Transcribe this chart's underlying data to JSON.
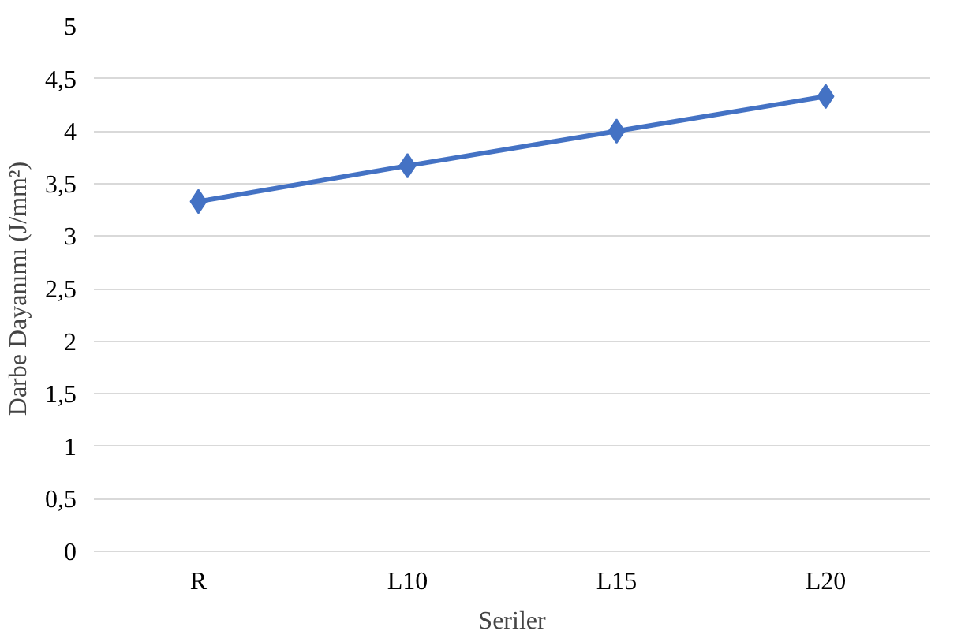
{
  "chart_data": {
    "type": "line",
    "xlabel": "Seriler",
    "ylabel": "Darbe Dayanımı (J/mm²)",
    "categories": [
      "R",
      "L10",
      "L15",
      "L20"
    ],
    "series": [
      {
        "color": "#4472c4",
        "values": [
          3.33,
          3.67,
          4.0,
          4.33
        ]
      }
    ],
    "ylim": [
      0,
      5
    ],
    "yticks": [
      0,
      {
        "value": 0.5,
        "label": "0,5"
      },
      1,
      {
        "value": 1.5,
        "label": "1,5"
      },
      2,
      {
        "value": 2.5,
        "label": "2,5"
      },
      3,
      {
        "value": 3.5,
        "label": "3,5"
      },
      4,
      {
        "value": 4.5,
        "label": "4,5"
      },
      5
    ],
    "grid": "y",
    "marker": "diamond",
    "line_style": "solid"
  }
}
